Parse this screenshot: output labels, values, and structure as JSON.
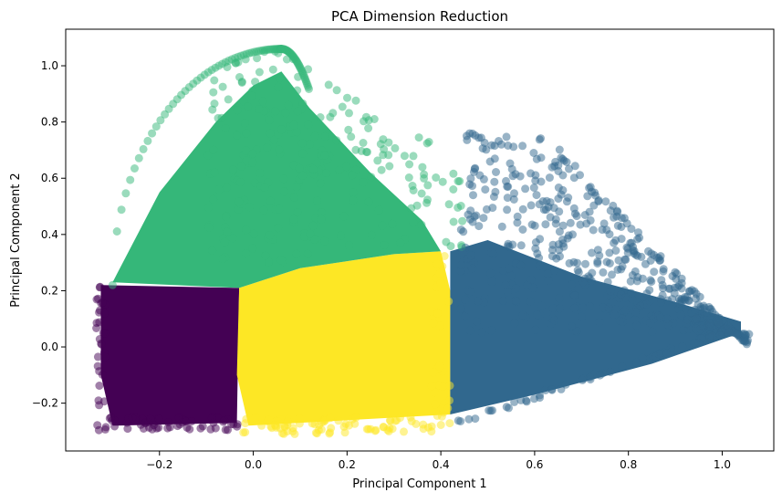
{
  "chart_data": {
    "type": "scatter",
    "title": "PCA Dimension Reduction",
    "xlabel": "Principal Component 1",
    "ylabel": "Principal Component 2",
    "xlim": [
      -0.4,
      1.11
    ],
    "ylim": [
      -0.37,
      1.13
    ],
    "xticks": [
      -0.2,
      0.0,
      0.2,
      0.4,
      0.6,
      0.8,
      1.0
    ],
    "xtick_labels": [
      "−0.2",
      "0.0",
      "0.2",
      "0.4",
      "0.6",
      "0.8",
      "1.0"
    ],
    "yticks": [
      -0.2,
      0.0,
      0.2,
      0.4,
      0.6,
      0.8,
      1.0
    ],
    "ytick_labels": [
      "−0.2",
      "0.0",
      "0.2",
      "0.4",
      "0.6",
      "0.8",
      "1.0"
    ],
    "grid": false,
    "legend": false,
    "marker_alpha": 0.5,
    "series": [
      {
        "color": "#440154",
        "x_range": [
          -0.33,
          -0.03
        ],
        "y_range": [
          -0.3,
          0.24
        ]
      },
      {
        "color": "#fde725",
        "x_range": [
          -0.03,
          0.42
        ],
        "y_range": [
          -0.31,
          0.35
        ]
      },
      {
        "color": "#31688e",
        "x_range": [
          0.38,
          1.05
        ],
        "y_range": [
          -0.25,
          0.76
        ]
      },
      {
        "color": "#35b779",
        "x_range": [
          -0.3,
          0.58
        ],
        "y_range": [
          0.22,
          1.06
        ]
      }
    ]
  }
}
